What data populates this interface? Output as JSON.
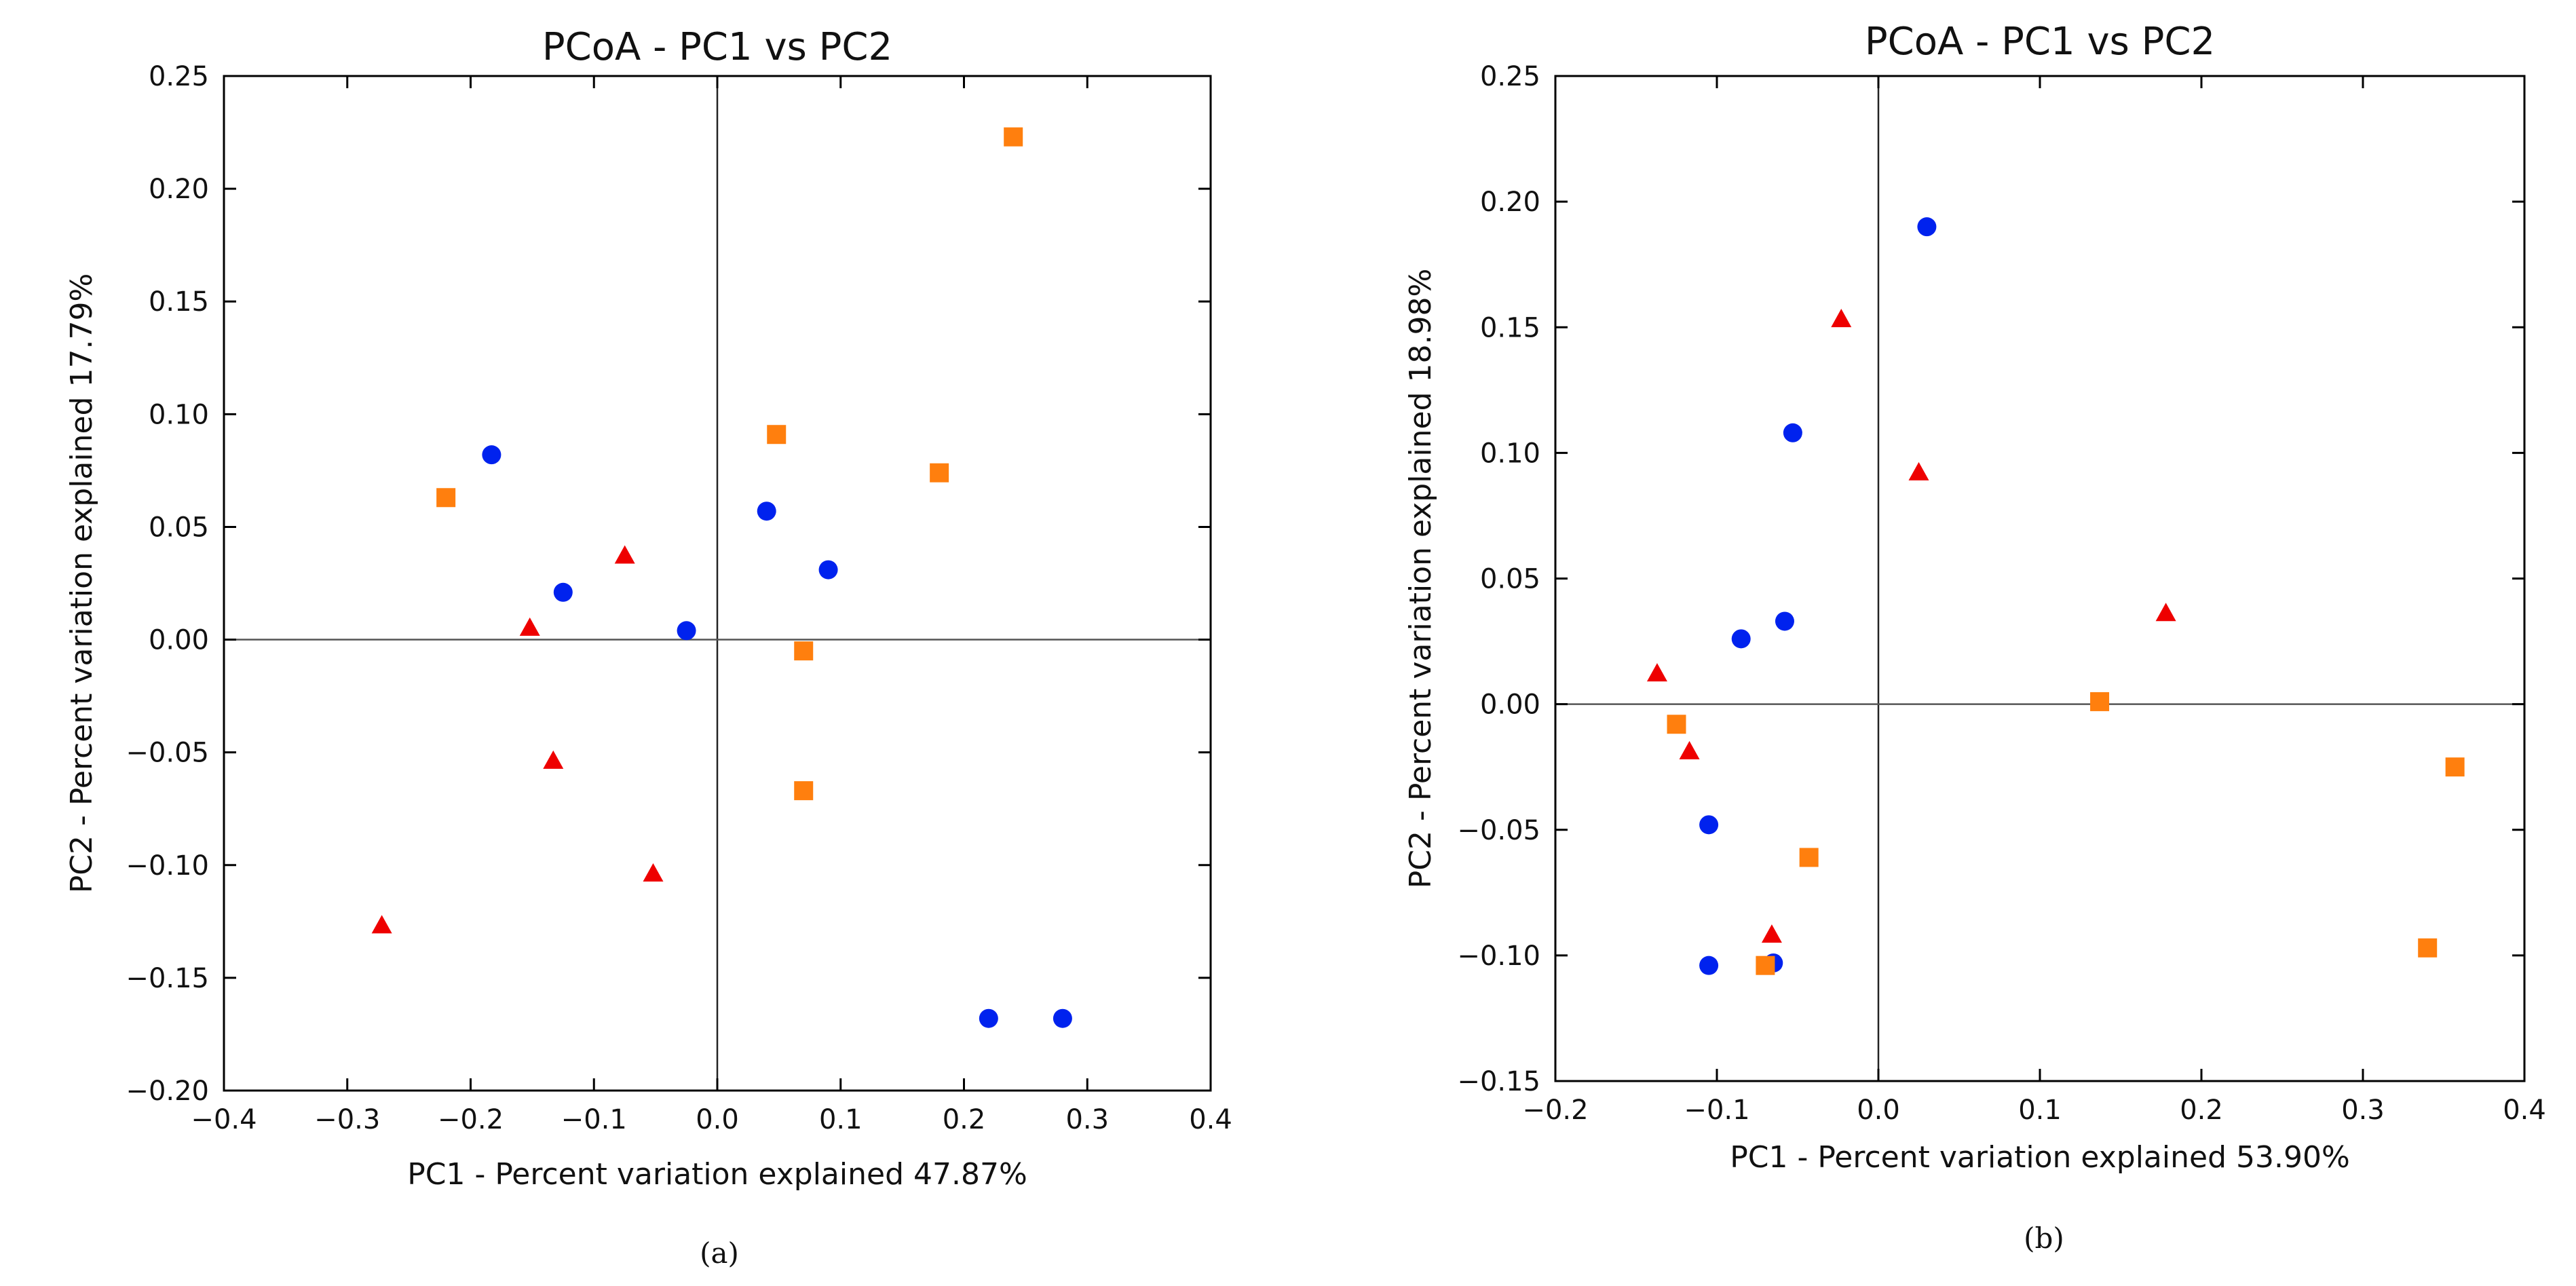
{
  "colors": {
    "blue": "#0022ee",
    "orange": "#ff7f0e",
    "red": "#ee0000"
  },
  "chart_data": [
    {
      "type": "scatter",
      "title": "PCoA - PC1 vs PC2",
      "xlabel": "PC1 - Percent variation explained 47.87%",
      "ylabel": "PC2 - Percent variation explained 17.79%",
      "subfigure_label": "(a)",
      "xlim": [
        -0.4,
        0.4
      ],
      "ylim": [
        -0.2,
        0.25
      ],
      "x_ticks": [
        "−0.4",
        "−0.3",
        "−0.2",
        "−0.1",
        "0.0",
        "0.1",
        "0.2",
        "0.3",
        "0.4"
      ],
      "y_ticks": [
        "−0.20",
        "−0.15",
        "−0.10",
        "−0.05",
        "0.00",
        "0.05",
        "0.10",
        "0.15",
        "0.20",
        "0.25"
      ],
      "grid": false,
      "series": [
        {
          "name": "blue circles",
          "marker": "circle",
          "color": "#0022ee",
          "points": [
            [
              -0.183,
              0.082
            ],
            [
              -0.125,
              0.021
            ],
            [
              -0.025,
              0.004
            ],
            [
              0.04,
              0.057
            ],
            [
              0.09,
              0.031
            ],
            [
              0.22,
              -0.168
            ],
            [
              0.28,
              -0.168
            ]
          ]
        },
        {
          "name": "orange squares",
          "marker": "square",
          "color": "#ff7f0e",
          "points": [
            [
              -0.22,
              0.063
            ],
            [
              0.048,
              0.091
            ],
            [
              0.07,
              -0.005
            ],
            [
              0.07,
              -0.067
            ],
            [
              0.18,
              0.074
            ],
            [
              0.24,
              0.223
            ]
          ]
        },
        {
          "name": "red triangles",
          "marker": "triangle",
          "color": "#ee0000",
          "points": [
            [
              -0.075,
              0.037
            ],
            [
              -0.152,
              0.005
            ],
            [
              -0.133,
              -0.054
            ],
            [
              -0.052,
              -0.104
            ],
            [
              -0.272,
              -0.127
            ]
          ]
        }
      ]
    },
    {
      "type": "scatter",
      "title": "PCoA - PC1 vs PC2",
      "xlabel": "PC1 - Percent variation explained 53.90%",
      "ylabel": "PC2 - Percent variation explained 18.98%",
      "subfigure_label": "(b)",
      "xlim": [
        -0.2,
        0.4
      ],
      "ylim": [
        -0.15,
        0.25
      ],
      "x_ticks": [
        "−0.2",
        "−0.1",
        "0.0",
        "0.1",
        "0.2",
        "0.3",
        "0.4"
      ],
      "y_ticks": [
        "−0.15",
        "−0.10",
        "−0.05",
        "0.00",
        "0.05",
        "0.10",
        "0.15",
        "0.20",
        "0.25"
      ],
      "grid": false,
      "series": [
        {
          "name": "blue circles",
          "marker": "circle",
          "color": "#0022ee",
          "points": [
            [
              0.03,
              0.19
            ],
            [
              -0.053,
              0.108
            ],
            [
              -0.085,
              0.026
            ],
            [
              -0.058,
              0.033
            ],
            [
              -0.105,
              -0.048
            ],
            [
              -0.105,
              -0.104
            ],
            [
              -0.065,
              -0.103
            ]
          ]
        },
        {
          "name": "orange squares",
          "marker": "square",
          "color": "#ff7f0e",
          "points": [
            [
              -0.125,
              -0.008
            ],
            [
              -0.043,
              -0.061
            ],
            [
              -0.07,
              -0.104
            ],
            [
              0.137,
              0.001
            ],
            [
              0.357,
              -0.025
            ],
            [
              0.34,
              -0.097
            ]
          ]
        },
        {
          "name": "red triangles",
          "marker": "triangle",
          "color": "#ee0000",
          "points": [
            [
              -0.023,
              0.153
            ],
            [
              0.025,
              0.092
            ],
            [
              0.178,
              0.036
            ],
            [
              -0.137,
              0.012
            ],
            [
              -0.117,
              -0.019
            ],
            [
              -0.066,
              -0.092
            ]
          ]
        }
      ]
    }
  ]
}
